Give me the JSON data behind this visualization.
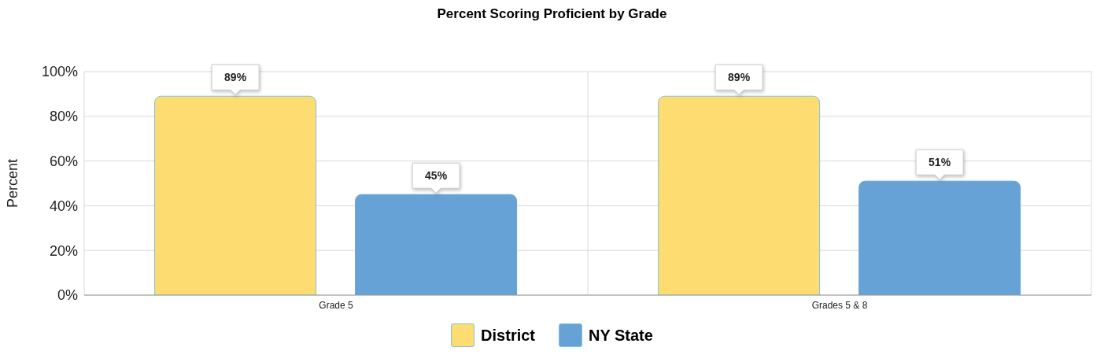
{
  "chart_data": {
    "type": "bar",
    "title": "Percent Scoring Proficient by Grade",
    "ylabel": "Percent",
    "categories": [
      "Grade 5",
      "Grades 5 & 8"
    ],
    "series": [
      {
        "name": "District",
        "color": "#fddc72",
        "values": [
          89,
          89
        ],
        "value_labels": [
          "89%",
          "89%"
        ]
      },
      {
        "name": "NY State",
        "color": "#67a2d7",
        "values": [
          45,
          51
        ],
        "value_labels": [
          "45%",
          "51%"
        ]
      }
    ],
    "ylim": [
      0,
      100
    ],
    "yticks": [
      {
        "value": 0,
        "label": "0%"
      },
      {
        "value": 20,
        "label": "20%"
      },
      {
        "value": 40,
        "label": "40%"
      },
      {
        "value": 60,
        "label": "60%"
      },
      {
        "value": 80,
        "label": "80%"
      },
      {
        "value": 100,
        "label": "100%"
      }
    ],
    "grid": true,
    "legend": "bottom"
  }
}
